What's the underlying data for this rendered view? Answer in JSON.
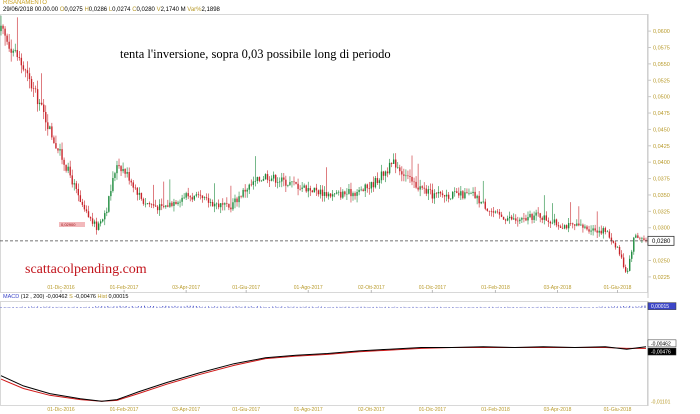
{
  "header": {
    "title": "RISANAMENTO",
    "date_time": "29/06/2018 00.00.00",
    "open_label": "O",
    "open": "0,0275",
    "high_label": "H",
    "high": "0,0286",
    "low_label": "L",
    "low": "0,0274",
    "close_label": "C",
    "close": "0,0280",
    "volume_label": "V",
    "volume": "2,1740 M",
    "change_label": "Var%",
    "change": "2,1898"
  },
  "annotations": {
    "comment": "tenta l'inversione, sopra 0,03 possibile long di periodo",
    "watermark": "scattacolpending.com",
    "min_marker": "0,02900"
  },
  "macd_header": {
    "label": "MACD",
    "params": "(12 , 200)",
    "macd": "-0,00462",
    "signal_label": "S",
    "signal": "-0,00476",
    "hist_label": "Hist",
    "hist": "0,00015"
  },
  "colors": {
    "bull": "#1c8a3c",
    "bear": "#c8242a",
    "macd_line": "#000000",
    "signal_line": "#d01818",
    "histogram": "#3c46c8",
    "axis_text": "#b89a2a",
    "price_box": "#ffffff"
  },
  "chart_data": [
    {
      "type": "candlestick",
      "title": "RISANAMENTO",
      "x_tick_labels": [
        "01-Dic-2016",
        "01-Feb-2017",
        "03-Apr-2017",
        "01-Giu-2017",
        "01-Ago-2017",
        "02-Ott-2017",
        "01-Dic-2017",
        "01-Feb-2018",
        "03-Apr-2018",
        "01-Giu-2018"
      ],
      "y_ticks": [
        "0,0600",
        "0,0575",
        "0,0550",
        "0,0525",
        "0,0500",
        "0,0475",
        "0,0450",
        "0,0425",
        "0,0400",
        "0,0375",
        "0,0350",
        "0,0325",
        "0,0300",
        "0,0250",
        "0,0225"
      ],
      "ylim": [
        0.0205,
        0.062
      ],
      "last_price_label": "0,0280",
      "last_price": 0.028,
      "close_path": [
        [
          "2016-10-03",
          0.06
        ],
        [
          "2016-10-20",
          0.056
        ],
        [
          "2016-11-10",
          0.049
        ],
        [
          "2016-11-25",
          0.043
        ],
        [
          "2016-12-10",
          0.038
        ],
        [
          "2016-12-22",
          0.033
        ],
        [
          "2017-01-05",
          0.03
        ],
        [
          "2017-01-15",
          0.033
        ],
        [
          "2017-01-25",
          0.04
        ],
        [
          "2017-02-05",
          0.038
        ],
        [
          "2017-02-20",
          0.034
        ],
        [
          "2017-03-10",
          0.033
        ],
        [
          "2017-04-03",
          0.035
        ],
        [
          "2017-04-25",
          0.034
        ],
        [
          "2017-05-15",
          0.033
        ],
        [
          "2017-06-01",
          0.036
        ],
        [
          "2017-06-20",
          0.038
        ],
        [
          "2017-07-10",
          0.037
        ],
        [
          "2017-08-01",
          0.036
        ],
        [
          "2017-08-25",
          0.035
        ],
        [
          "2017-09-20",
          0.0355
        ],
        [
          "2017-10-02",
          0.0365
        ],
        [
          "2017-10-25",
          0.04
        ],
        [
          "2017-11-10",
          0.037
        ],
        [
          "2017-12-01",
          0.035
        ],
        [
          "2018-01-10",
          0.035
        ],
        [
          "2018-02-01",
          0.032
        ],
        [
          "2018-02-25",
          0.031
        ],
        [
          "2018-03-15",
          0.032
        ],
        [
          "2018-04-03",
          0.0305
        ],
        [
          "2018-05-01",
          0.03
        ],
        [
          "2018-05-20",
          0.0295
        ],
        [
          "2018-06-01",
          0.027
        ],
        [
          "2018-06-10",
          0.023
        ],
        [
          "2018-06-18",
          0.029
        ],
        [
          "2018-06-29",
          0.028
        ]
      ]
    },
    {
      "type": "line",
      "title": "MACD",
      "x_tick_labels": [
        "01-Dic-2016",
        "01-Feb-2017",
        "03-Apr-2017",
        "01-Giu-2017",
        "01-Ago-2017",
        "02-Ott-2017",
        "01-Dic-2017",
        "01-Feb-2018",
        "03-Apr-2018",
        "01-Giu-2018"
      ],
      "y_ticks": [
        "0,00015",
        "-0,00462",
        "-0,00476",
        "-0,01101"
      ],
      "ylim": [
        -0.0112,
        0.0004
      ],
      "series": [
        {
          "name": "MACD",
          "points": [
            [
              "2016-10-03",
              -0.008
            ],
            [
              "2016-10-25",
              -0.0092
            ],
            [
              "2016-11-20",
              -0.0101
            ],
            [
              "2016-12-20",
              -0.0107
            ],
            [
              "2017-01-10",
              -0.011
            ],
            [
              "2017-01-25",
              -0.0108
            ],
            [
              "2017-02-15",
              -0.0099
            ],
            [
              "2017-03-15",
              -0.0088
            ],
            [
              "2017-04-15",
              -0.0077
            ],
            [
              "2017-05-20",
              -0.0066
            ],
            [
              "2017-06-20",
              -0.0059
            ],
            [
              "2017-07-20",
              -0.0056
            ],
            [
              "2017-08-20",
              -0.0054
            ],
            [
              "2017-09-20",
              -0.0051
            ],
            [
              "2017-10-20",
              -0.0049
            ],
            [
              "2017-11-20",
              -0.0047
            ],
            [
              "2017-12-20",
              -0.0047
            ],
            [
              "2018-01-20",
              -0.0046
            ],
            [
              "2018-02-20",
              -0.0047
            ],
            [
              "2018-03-20",
              -0.0046
            ],
            [
              "2018-04-20",
              -0.0047
            ],
            [
              "2018-05-20",
              -0.0046
            ],
            [
              "2018-06-10",
              -0.0049
            ],
            [
              "2018-06-29",
              -0.0046
            ]
          ]
        },
        {
          "name": "Signal",
          "points": [
            [
              "2016-10-03",
              -0.0084
            ],
            [
              "2016-10-25",
              -0.0095
            ],
            [
              "2016-11-20",
              -0.0103
            ],
            [
              "2016-12-20",
              -0.0108
            ],
            [
              "2017-01-10",
              -0.011
            ],
            [
              "2017-01-25",
              -0.0109
            ],
            [
              "2017-02-15",
              -0.0101
            ],
            [
              "2017-03-15",
              -0.009
            ],
            [
              "2017-04-15",
              -0.0079
            ],
            [
              "2017-05-20",
              -0.0068
            ],
            [
              "2017-06-20",
              -0.006
            ],
            [
              "2017-07-20",
              -0.0057
            ],
            [
              "2017-08-20",
              -0.0055
            ],
            [
              "2017-09-20",
              -0.0052
            ],
            [
              "2017-10-20",
              -0.005
            ],
            [
              "2017-11-20",
              -0.0048
            ],
            [
              "2017-12-20",
              -0.0047
            ],
            [
              "2018-01-20",
              -0.0047
            ],
            [
              "2018-02-20",
              -0.0047
            ],
            [
              "2018-03-20",
              -0.0047
            ],
            [
              "2018-04-20",
              -0.0047
            ],
            [
              "2018-05-20",
              -0.0047
            ],
            [
              "2018-06-10",
              -0.0048
            ],
            [
              "2018-06-29",
              -0.0048
            ]
          ]
        }
      ],
      "histogram": [
        [
          "2016-10-10",
          5e-05
        ],
        [
          "2016-11-10",
          8e-05
        ],
        [
          "2016-12-10",
          6e-05
        ],
        [
          "2017-01-20",
          0.00012
        ],
        [
          "2017-03-01",
          0.00015
        ],
        [
          "2017-05-01",
          0.00012
        ],
        [
          "2017-07-01",
          8e-05
        ],
        [
          "2017-09-01",
          6e-05
        ],
        [
          "2017-11-01",
          5e-05
        ],
        [
          "2018-01-01",
          4e-05
        ],
        [
          "2018-03-01",
          5e-05
        ],
        [
          "2018-05-01",
          4e-05
        ],
        [
          "2018-06-29",
          0.00015
        ]
      ]
    }
  ]
}
